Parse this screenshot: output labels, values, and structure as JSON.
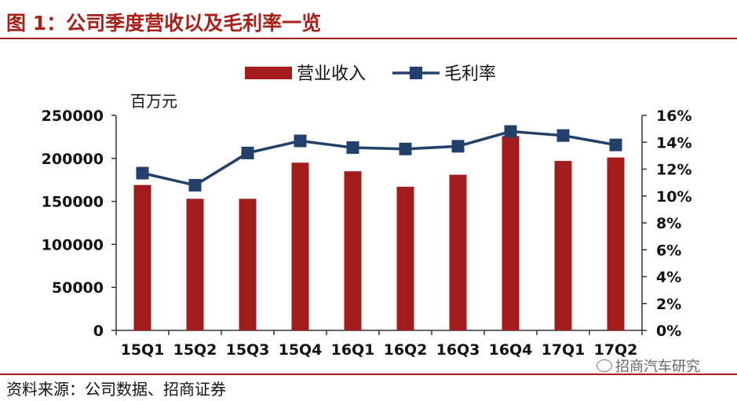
{
  "figure": {
    "title": "图 1：公司季度营收以及毛利率一览",
    "source": "资料来源：公司数据、招商证券",
    "watermark": "招商汽车研究"
  },
  "colors": {
    "accent": "#a8201a",
    "bar": "#a31c1c",
    "line": "#23406b"
  },
  "chart_data": {
    "type": "bar",
    "categories": [
      "15Q1",
      "15Q2",
      "15Q3",
      "15Q4",
      "16Q1",
      "16Q2",
      "16Q3",
      "16Q4",
      "17Q1",
      "17Q2"
    ],
    "series": [
      {
        "name": "营业收入",
        "type": "bar",
        "axis": "left",
        "values": [
          169000,
          153000,
          153000,
          195000,
          185000,
          167000,
          181000,
          226000,
          197000,
          201000
        ]
      },
      {
        "name": "毛利率",
        "type": "line",
        "axis": "right",
        "values": [
          0.117,
          0.108,
          0.132,
          0.141,
          0.136,
          0.135,
          0.137,
          0.148,
          0.145,
          0.138
        ]
      }
    ],
    "left_axis": {
      "unit": "百万元",
      "ylim": [
        0,
        250000
      ],
      "ticks": [
        "0",
        "50000",
        "100000",
        "150000",
        "200000",
        "250000"
      ]
    },
    "right_axis": {
      "ylim": [
        0,
        0.16
      ],
      "ticks": [
        "0%",
        "2%",
        "4%",
        "6%",
        "8%",
        "10%",
        "12%",
        "14%",
        "16%"
      ]
    },
    "legend_position": "top",
    "grid": false
  }
}
